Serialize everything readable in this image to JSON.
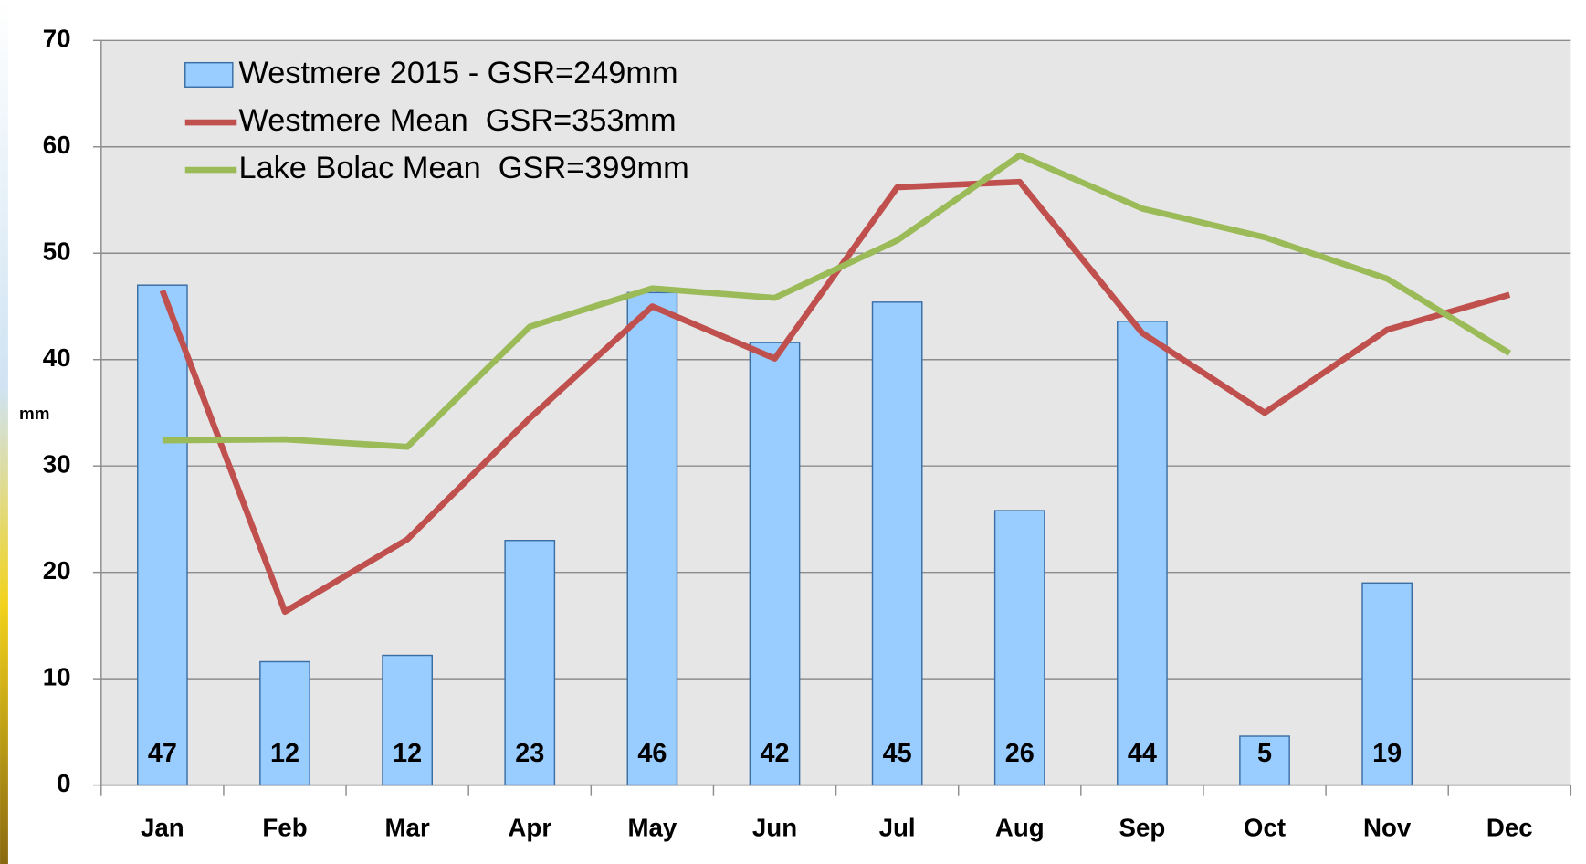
{
  "chart_data": {
    "type": "bar",
    "y_label": "mm",
    "categories": [
      "Jan",
      "Feb",
      "Mar",
      "Apr",
      "May",
      "Jun",
      "Jul",
      "Aug",
      "Sep",
      "Oct",
      "Nov",
      "Dec"
    ],
    "series": [
      {
        "name": "Westmere 2015 - GSR=249mm",
        "type": "bar",
        "color": "#99ccff",
        "values": [
          47,
          11.6,
          12.2,
          23,
          46.3,
          41.6,
          45.4,
          25.8,
          43.6,
          4.6,
          19,
          null
        ],
        "value_labels": [
          "47",
          "12",
          "12",
          "23",
          "46",
          "42",
          "45",
          "26",
          "44",
          "5",
          "19",
          null
        ]
      },
      {
        "name": "Westmere Mean  GSR=353mm",
        "type": "line",
        "color": "#c0504d",
        "values": [
          46.5,
          16.3,
          23.1,
          34.5,
          45,
          40.1,
          56.2,
          56.7,
          42.5,
          35,
          42.8,
          46.1
        ]
      },
      {
        "name": "Lake Bolac Mean  GSR=399mm",
        "type": "line",
        "color": "#9bbb59",
        "values": [
          32.4,
          32.5,
          31.8,
          43.1,
          46.7,
          45.8,
          51.2,
          59.2,
          54.2,
          51.5,
          47.6,
          40.6
        ]
      }
    ],
    "ylim": [
      0,
      70
    ],
    "yticks": [
      0,
      10,
      20,
      30,
      40,
      50,
      60,
      70
    ],
    "grid": true,
    "legend": "top-left"
  }
}
